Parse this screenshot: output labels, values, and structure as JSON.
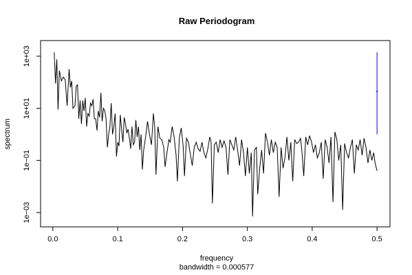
{
  "chart_data": {
    "type": "line",
    "title": "Raw Periodogram",
    "xlabel": "frequency",
    "ylabel": "spectrum",
    "sub": "bandwidth = 0.000577",
    "x_ticks": [
      0.0,
      0.1,
      0.2,
      0.3,
      0.4,
      0.5
    ],
    "x_tick_labels": [
      "0.0",
      "0.1",
      "0.2",
      "0.3",
      "0.4",
      "0.5"
    ],
    "y_log_ticks": [
      -3,
      -1,
      1,
      3
    ],
    "y_tick_labels": [
      "1e−03",
      "1e−01",
      "1e+01",
      "1e+03"
    ],
    "x_range": [
      -0.019,
      0.52
    ],
    "y_log_range": [
      -3.55,
      3.6
    ],
    "line_color": "#000000",
    "ci_color": "#0000ff",
    "confidence_bar": {
      "x": 0.5,
      "log_lower": 0.0,
      "log_center": 1.65,
      "log_upper": 3.15
    },
    "series_log10": [
      {
        "x": 0.002,
        "y": 3.15
      },
      {
        "x": 0.004,
        "y": 1.95
      },
      {
        "x": 0.006,
        "y": 2.88
      },
      {
        "x": 0.008,
        "y": 0.95
      },
      {
        "x": 0.01,
        "y": 2.45
      },
      {
        "x": 0.013,
        "y": 2.05
      },
      {
        "x": 0.016,
        "y": 2.2
      },
      {
        "x": 0.019,
        "y": 2.1
      },
      {
        "x": 0.022,
        "y": 1.1
      },
      {
        "x": 0.025,
        "y": 2.5
      },
      {
        "x": 0.027,
        "y": 1.8
      },
      {
        "x": 0.029,
        "y": 2.05
      },
      {
        "x": 0.031,
        "y": 1.0
      },
      {
        "x": 0.034,
        "y": 1.1
      },
      {
        "x": 0.036,
        "y": 1.85
      },
      {
        "x": 0.038,
        "y": 1.9
      },
      {
        "x": 0.04,
        "y": 0.6
      },
      {
        "x": 0.042,
        "y": 1.3
      },
      {
        "x": 0.044,
        "y": 0.4
      },
      {
        "x": 0.046,
        "y": 1.3
      },
      {
        "x": 0.048,
        "y": 0.9
      },
      {
        "x": 0.05,
        "y": 1.4
      },
      {
        "x": 0.052,
        "y": 0.3
      },
      {
        "x": 0.054,
        "y": 0.8
      },
      {
        "x": 0.056,
        "y": 0.7
      },
      {
        "x": 0.058,
        "y": 1.2
      },
      {
        "x": 0.06,
        "y": 1.1
      },
      {
        "x": 0.062,
        "y": 1.35
      },
      {
        "x": 0.064,
        "y": 0.6
      },
      {
        "x": 0.066,
        "y": 0.6
      },
      {
        "x": 0.068,
        "y": 0.15
      },
      {
        "x": 0.07,
        "y": 0.9
      },
      {
        "x": 0.072,
        "y": 0.65
      },
      {
        "x": 0.074,
        "y": 1.6
      },
      {
        "x": 0.076,
        "y": 0.5
      },
      {
        "x": 0.078,
        "y": 1.0
      },
      {
        "x": 0.08,
        "y": 0.9
      },
      {
        "x": 0.082,
        "y": 0.6
      },
      {
        "x": 0.084,
        "y": -0.5
      },
      {
        "x": 0.086,
        "y": 0.0
      },
      {
        "x": 0.088,
        "y": 0.3
      },
      {
        "x": 0.09,
        "y": 1.2
      },
      {
        "x": 0.092,
        "y": 0.0
      },
      {
        "x": 0.094,
        "y": 0.3
      },
      {
        "x": 0.096,
        "y": 0.8
      },
      {
        "x": 0.098,
        "y": -0.85
      },
      {
        "x": 0.1,
        "y": -0.3
      },
      {
        "x": 0.102,
        "y": -0.45
      },
      {
        "x": 0.104,
        "y": 0.75
      },
      {
        "x": 0.106,
        "y": 0.2
      },
      {
        "x": 0.108,
        "y": -0.3
      },
      {
        "x": 0.11,
        "y": 0.65
      },
      {
        "x": 0.112,
        "y": 0.4
      },
      {
        "x": 0.114,
        "y": 0.05
      },
      {
        "x": 0.116,
        "y": 0.2
      },
      {
        "x": 0.118,
        "y": -0.15
      },
      {
        "x": 0.12,
        "y": -0.55
      },
      {
        "x": 0.122,
        "y": 0.3
      },
      {
        "x": 0.124,
        "y": -0.4
      },
      {
        "x": 0.126,
        "y": -0.3
      },
      {
        "x": 0.128,
        "y": 0.55
      },
      {
        "x": 0.13,
        "y": -0.1
      },
      {
        "x": 0.132,
        "y": 0.3
      },
      {
        "x": 0.134,
        "y": -0.6
      },
      {
        "x": 0.136,
        "y": 0.0
      },
      {
        "x": 0.138,
        "y": -1.35
      },
      {
        "x": 0.14,
        "y": -0.6
      },
      {
        "x": 0.143,
        "y": -0.1
      },
      {
        "x": 0.146,
        "y": 0.5
      },
      {
        "x": 0.149,
        "y": 0.0
      },
      {
        "x": 0.152,
        "y": -0.4
      },
      {
        "x": 0.155,
        "y": 0.8
      },
      {
        "x": 0.157,
        "y": 0.3
      },
      {
        "x": 0.159,
        "y": -1.55
      },
      {
        "x": 0.162,
        "y": 0.3
      },
      {
        "x": 0.165,
        "y": -0.15
      },
      {
        "x": 0.168,
        "y": -0.2
      },
      {
        "x": 0.171,
        "y": -0.5
      },
      {
        "x": 0.173,
        "y": -1.25
      },
      {
        "x": 0.176,
        "y": -0.7
      },
      {
        "x": 0.179,
        "y": -0.2
      },
      {
        "x": 0.181,
        "y": -0.3
      },
      {
        "x": 0.184,
        "y": 0.3
      },
      {
        "x": 0.187,
        "y": -0.1
      },
      {
        "x": 0.19,
        "y": -0.8
      },
      {
        "x": 0.192,
        "y": -1.8
      },
      {
        "x": 0.195,
        "y": -0.15
      },
      {
        "x": 0.198,
        "y": 0.25
      },
      {
        "x": 0.201,
        "y": -0.45
      },
      {
        "x": 0.203,
        "y": -1.6
      },
      {
        "x": 0.206,
        "y": -0.15
      },
      {
        "x": 0.209,
        "y": -0.3
      },
      {
        "x": 0.212,
        "y": -0.75
      },
      {
        "x": 0.215,
        "y": -1.2
      },
      {
        "x": 0.218,
        "y": -0.5
      },
      {
        "x": 0.221,
        "y": -0.3
      },
      {
        "x": 0.224,
        "y": -0.55
      },
      {
        "x": 0.227,
        "y": -0.65
      },
      {
        "x": 0.23,
        "y": -0.3
      },
      {
        "x": 0.233,
        "y": -0.7
      },
      {
        "x": 0.236,
        "y": -0.9
      },
      {
        "x": 0.239,
        "y": -0.55
      },
      {
        "x": 0.242,
        "y": -0.1
      },
      {
        "x": 0.244,
        "y": -0.3
      },
      {
        "x": 0.246,
        "y": -2.65
      },
      {
        "x": 0.249,
        "y": -0.4
      },
      {
        "x": 0.252,
        "y": -0.3
      },
      {
        "x": 0.255,
        "y": -0.7
      },
      {
        "x": 0.258,
        "y": -0.2
      },
      {
        "x": 0.261,
        "y": -0.5
      },
      {
        "x": 0.264,
        "y": -0.25
      },
      {
        "x": 0.267,
        "y": -0.5
      },
      {
        "x": 0.27,
        "y": -1.55
      },
      {
        "x": 0.273,
        "y": -0.2
      },
      {
        "x": 0.276,
        "y": -0.4
      },
      {
        "x": 0.279,
        "y": -0.6
      },
      {
        "x": 0.282,
        "y": -0.1
      },
      {
        "x": 0.285,
        "y": -0.6
      },
      {
        "x": 0.288,
        "y": -1.2
      },
      {
        "x": 0.291,
        "y": -0.2
      },
      {
        "x": 0.294,
        "y": -0.7
      },
      {
        "x": 0.297,
        "y": -1.6
      },
      {
        "x": 0.3,
        "y": -0.5
      },
      {
        "x": 0.303,
        "y": -1.5
      },
      {
        "x": 0.306,
        "y": -0.7
      },
      {
        "x": 0.308,
        "y": -3.15
      },
      {
        "x": 0.311,
        "y": -0.6
      },
      {
        "x": 0.314,
        "y": -0.5
      },
      {
        "x": 0.316,
        "y": -2.3
      },
      {
        "x": 0.319,
        "y": -1.3
      },
      {
        "x": 0.322,
        "y": -0.6
      },
      {
        "x": 0.325,
        "y": -1.5
      },
      {
        "x": 0.328,
        "y": 0.05
      },
      {
        "x": 0.331,
        "y": -0.3
      },
      {
        "x": 0.334,
        "y": -0.8
      },
      {
        "x": 0.337,
        "y": -0.2
      },
      {
        "x": 0.34,
        "y": -0.7
      },
      {
        "x": 0.343,
        "y": -0.3
      },
      {
        "x": 0.346,
        "y": -0.5
      },
      {
        "x": 0.349,
        "y": -2.4
      },
      {
        "x": 0.352,
        "y": -0.5
      },
      {
        "x": 0.355,
        "y": -1.3
      },
      {
        "x": 0.358,
        "y": -0.9
      },
      {
        "x": 0.361,
        "y": -0.1
      },
      {
        "x": 0.364,
        "y": -1.0
      },
      {
        "x": 0.367,
        "y": -0.3
      },
      {
        "x": 0.37,
        "y": -1.8
      },
      {
        "x": 0.373,
        "y": -0.2
      },
      {
        "x": 0.376,
        "y": -0.35
      },
      {
        "x": 0.379,
        "y": -0.3
      },
      {
        "x": 0.382,
        "y": -0.15
      },
      {
        "x": 0.384,
        "y": -0.6
      },
      {
        "x": 0.387,
        "y": -1.6
      },
      {
        "x": 0.39,
        "y": -0.1
      },
      {
        "x": 0.393,
        "y": -0.4
      },
      {
        "x": 0.396,
        "y": -0.05
      },
      {
        "x": 0.399,
        "y": -0.3
      },
      {
        "x": 0.402,
        "y": -0.7
      },
      {
        "x": 0.405,
        "y": -0.4
      },
      {
        "x": 0.408,
        "y": -0.9
      },
      {
        "x": 0.411,
        "y": -0.7
      },
      {
        "x": 0.414,
        "y": -0.3
      },
      {
        "x": 0.417,
        "y": -1.7
      },
      {
        "x": 0.42,
        "y": -0.2
      },
      {
        "x": 0.423,
        "y": -0.5
      },
      {
        "x": 0.426,
        "y": -1.1
      },
      {
        "x": 0.429,
        "y": -0.1
      },
      {
        "x": 0.432,
        "y": -2.6
      },
      {
        "x": 0.435,
        "y": 0.1
      },
      {
        "x": 0.438,
        "y": -0.2
      },
      {
        "x": 0.441,
        "y": -1.0
      },
      {
        "x": 0.444,
        "y": -0.4
      },
      {
        "x": 0.447,
        "y": -2.9
      },
      {
        "x": 0.45,
        "y": -0.35
      },
      {
        "x": 0.453,
        "y": -0.7
      },
      {
        "x": 0.456,
        "y": -0.9
      },
      {
        "x": 0.459,
        "y": -0.5
      },
      {
        "x": 0.462,
        "y": -0.2
      },
      {
        "x": 0.465,
        "y": -1.5
      },
      {
        "x": 0.468,
        "y": -0.4
      },
      {
        "x": 0.471,
        "y": -0.6
      },
      {
        "x": 0.474,
        "y": -0.2
      },
      {
        "x": 0.477,
        "y": -0.8
      },
      {
        "x": 0.48,
        "y": -0.15
      },
      {
        "x": 0.483,
        "y": -0.5
      },
      {
        "x": 0.486,
        "y": -1.1
      },
      {
        "x": 0.489,
        "y": -0.6
      },
      {
        "x": 0.492,
        "y": -1.0
      },
      {
        "x": 0.495,
        "y": -0.7
      },
      {
        "x": 0.497,
        "y": -1.1
      },
      {
        "x": 0.5,
        "y": -1.4
      }
    ]
  }
}
